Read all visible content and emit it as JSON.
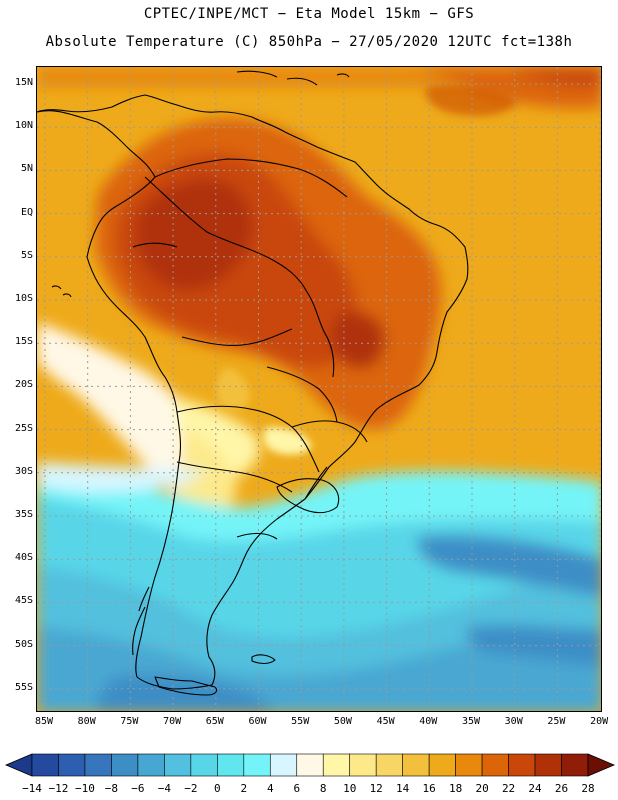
{
  "header": {
    "line1": "CPTEC/INPE/MCT −  Eta Model 15km − GFS",
    "line2": "Absolute Temperature (C) 850hPa − 27/05/2020 12UTC fct=138h"
  },
  "map": {
    "lat_labels": [
      "15N",
      "10N",
      "5N",
      "EQ",
      "5S",
      "10S",
      "15S",
      "20S",
      "25S",
      "30S",
      "35S",
      "40S",
      "45S",
      "50S",
      "55S"
    ],
    "lon_labels": [
      "85W",
      "80W",
      "75W",
      "70W",
      "65W",
      "60W",
      "55W",
      "50W",
      "45W",
      "40W",
      "35W",
      "30W",
      "25W",
      "20W"
    ],
    "region": "South America",
    "variable": "Absolute Temperature (C) 850hPa"
  },
  "colorbar": {
    "labels": [
      "−14",
      "−12",
      "−10",
      "−8",
      "−6",
      "−4",
      "−2",
      "0",
      "2",
      "4",
      "6",
      "8",
      "10",
      "12",
      "14",
      "16",
      "18",
      "20",
      "22",
      "24",
      "26",
      "28"
    ],
    "colors": [
      "#1c3a8c",
      "#234a9e",
      "#2d5eaf",
      "#3775bc",
      "#3e8ec6",
      "#48a7d2",
      "#52c0de",
      "#58d6e8",
      "#5fe6ef",
      "#74f4f8",
      "#d8f6ff",
      "#fff8e6",
      "#fff6a8",
      "#fde98a",
      "#f8d666",
      "#f3c03e",
      "#eeaa1a",
      "#e8880d",
      "#dc650a",
      "#c9470a",
      "#b03008",
      "#8f1d07",
      "#6b0f05"
    ]
  }
}
